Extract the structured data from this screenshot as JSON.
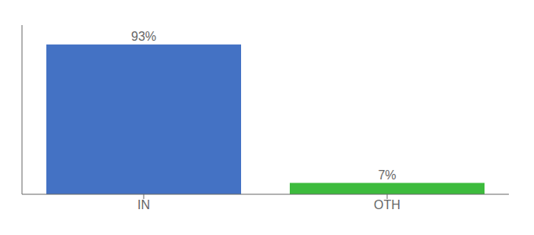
{
  "chart_data": {
    "type": "bar",
    "categories": [
      "IN",
      "OTH"
    ],
    "values": [
      93,
      7
    ],
    "value_labels": [
      "93%",
      "7%"
    ],
    "data_labels": true,
    "colors": [
      "#4472c4",
      "#3dbb3d"
    ],
    "ylim": [
      0,
      105
    ],
    "tick_labels": "x",
    "grid": false
  }
}
